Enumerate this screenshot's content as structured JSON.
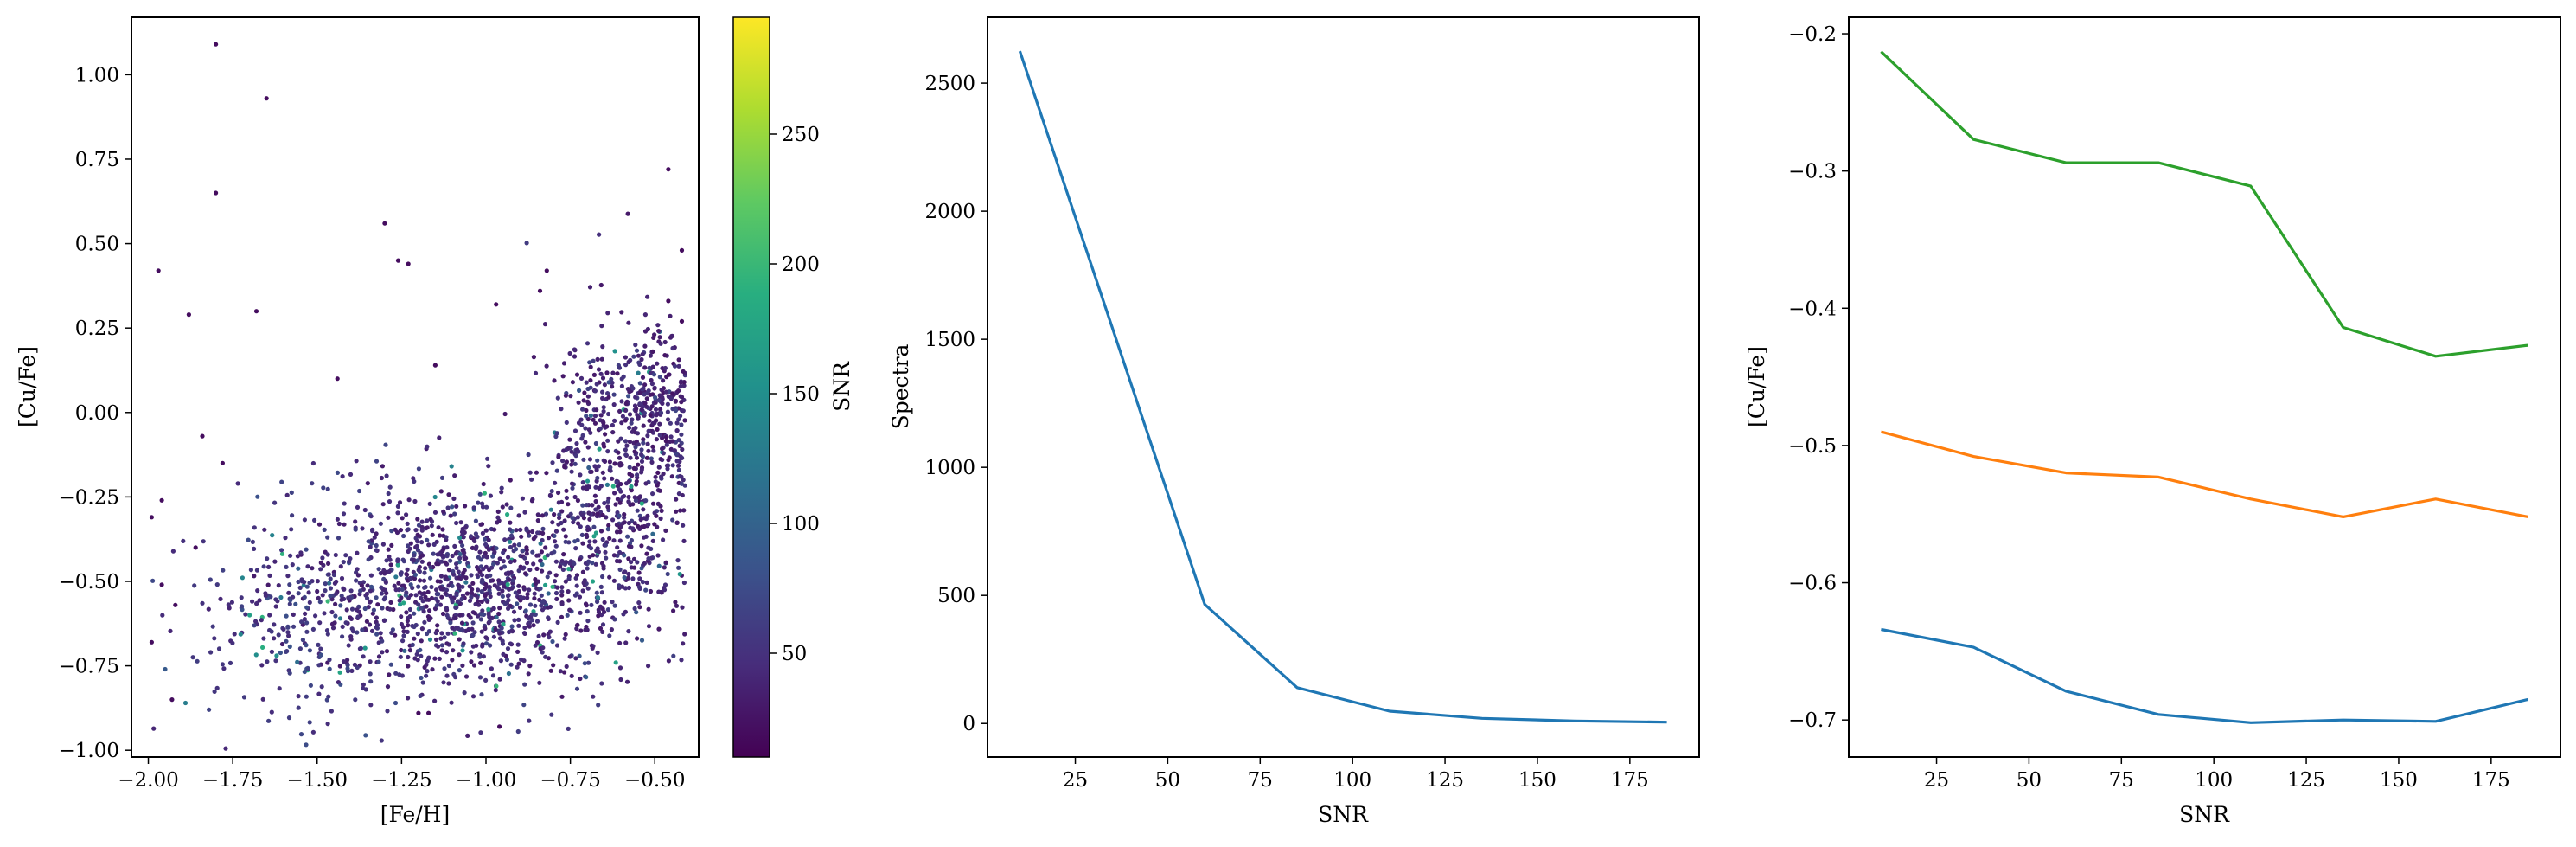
{
  "chart_data": [
    {
      "type": "scatter",
      "xlabel": "[Fe/H]",
      "ylabel": "[Cu/Fe]",
      "xlim": [
        -2.05,
        -0.37
      ],
      "ylim": [
        -1.02,
        1.17
      ],
      "xticks": [
        -2.0,
        -1.75,
        -1.5,
        -1.25,
        -1.0,
        -0.75,
        -0.5
      ],
      "xtick_labels": [
        "−2.00",
        "−1.75",
        "−1.50",
        "−1.25",
        "−1.00",
        "−0.75",
        "−0.50"
      ],
      "yticks": [
        -1.0,
        -0.75,
        -0.5,
        -0.25,
        0.0,
        0.25,
        0.5,
        0.75,
        1.0
      ],
      "ytick_labels": [
        "−1.00",
        "−0.75",
        "−0.50",
        "−0.25",
        "0.00",
        "0.25",
        "0.50",
        "0.75",
        "1.00"
      ],
      "grid": false,
      "colormap": "viridis",
      "colorbar": {
        "label": "SNR",
        "range": [
          10,
          295
        ],
        "ticks": [
          50,
          100,
          150,
          200,
          250
        ],
        "tick_labels": [
          "50",
          "100",
          "150",
          "200",
          "250"
        ]
      },
      "outliers": [
        {
          "x": -1.8,
          "y": 1.09,
          "c": 20
        },
        {
          "x": -1.65,
          "y": 0.93,
          "c": 20
        },
        {
          "x": -1.8,
          "y": 0.65,
          "c": 20
        },
        {
          "x": -1.3,
          "y": 0.56,
          "c": 20
        },
        {
          "x": -1.26,
          "y": 0.45,
          "c": 20
        },
        {
          "x": -1.23,
          "y": 0.44,
          "c": 20
        },
        {
          "x": -1.97,
          "y": 0.42,
          "c": 20
        },
        {
          "x": -1.88,
          "y": 0.29,
          "c": 20
        },
        {
          "x": -1.68,
          "y": 0.3,
          "c": 20
        },
        {
          "x": -0.97,
          "y": 0.32,
          "c": 20
        },
        {
          "x": -0.84,
          "y": 0.36,
          "c": 20
        },
        {
          "x": -0.82,
          "y": 0.42,
          "c": 20
        },
        {
          "x": -0.46,
          "y": 0.72,
          "c": 20
        },
        {
          "x": -0.42,
          "y": 0.48,
          "c": 20
        },
        {
          "x": -0.46,
          "y": 0.33,
          "c": 20
        },
        {
          "x": -0.42,
          "y": 0.27,
          "c": 20
        },
        {
          "x": -1.84,
          "y": -0.07,
          "c": 20
        },
        {
          "x": -1.78,
          "y": -0.15,
          "c": 20
        },
        {
          "x": -1.99,
          "y": -0.31,
          "c": 20
        },
        {
          "x": -1.96,
          "y": -0.26,
          "c": 20
        },
        {
          "x": -1.15,
          "y": 0.14,
          "c": 20
        },
        {
          "x": -1.44,
          "y": 0.1,
          "c": 20
        },
        {
          "x": -0.96,
          "y": -0.93,
          "c": 20
        },
        {
          "x": -1.17,
          "y": -0.89,
          "c": 20
        },
        {
          "x": -1.2,
          "y": -0.89,
          "c": 20
        },
        {
          "x": -1.93,
          "y": -0.85,
          "c": 20
        },
        {
          "x": -1.89,
          "y": -0.86,
          "c": 130
        },
        {
          "x": -1.96,
          "y": -0.51,
          "c": 20
        },
        {
          "x": -1.99,
          "y": -0.68,
          "c": 20
        },
        {
          "x": -1.95,
          "y": -0.76,
          "c": 90
        },
        {
          "x": -1.92,
          "y": -0.57,
          "c": 20
        },
        {
          "x": -1.86,
          "y": -0.4,
          "c": 20
        },
        {
          "x": -1.7,
          "y": -0.6,
          "c": 170
        },
        {
          "x": -1.62,
          "y": -0.72,
          "c": 150
        }
      ],
      "clusters": [
        {
          "cx": -1.05,
          "cy": -0.52,
          "sx": 0.22,
          "sy": 0.15,
          "n": 1150,
          "c_median": 30
        },
        {
          "cx": -0.62,
          "cy": -0.2,
          "sx": 0.11,
          "sy": 0.22,
          "n": 600,
          "c_median": 28
        },
        {
          "cx": -1.55,
          "cy": -0.62,
          "sx": 0.18,
          "sy": 0.16,
          "n": 280,
          "c_median": 40
        },
        {
          "cx": -0.49,
          "cy": 0.02,
          "sx": 0.05,
          "sy": 0.12,
          "n": 200,
          "c_median": 25
        }
      ],
      "sampled_points_note": ""
    },
    {
      "type": "line",
      "xlabel": "SNR",
      "ylabel": "Spectra",
      "xlim": [
        1.25,
        193.75
      ],
      "ylim": [
        -131,
        2757
      ],
      "xticks": [
        25,
        50,
        75,
        100,
        125,
        150,
        175
      ],
      "xtick_labels": [
        "25",
        "50",
        "75",
        "100",
        "125",
        "150",
        "175"
      ],
      "yticks": [
        0,
        500,
        1000,
        1500,
        2000,
        2500
      ],
      "ytick_labels": [
        "0",
        "500",
        "1000",
        "1500",
        "2000",
        "2500"
      ],
      "grid": false,
      "series": [
        {
          "color": "#1f77b4",
          "x": [
            10,
            35,
            60,
            85,
            110,
            135,
            160,
            185
          ],
          "y": [
            2625,
            1545,
            465,
            140,
            48,
            20,
            10,
            5
          ]
        }
      ]
    },
    {
      "type": "line",
      "xlabel": "SNR",
      "ylabel": "[Cu/Fe]",
      "xlim": [
        1.25,
        193.75
      ],
      "ylim": [
        -0.727,
        -0.188
      ],
      "xticks": [
        25,
        50,
        75,
        100,
        125,
        150,
        175
      ],
      "xtick_labels": [
        "25",
        "50",
        "75",
        "100",
        "125",
        "150",
        "175"
      ],
      "yticks": [
        -0.7,
        -0.6,
        -0.5,
        -0.4,
        -0.3,
        -0.2
      ],
      "ytick_labels": [
        "−0.7",
        "−0.6",
        "−0.5",
        "−0.4",
        "−0.3",
        "−0.2"
      ],
      "grid": false,
      "series": [
        {
          "color": "#1f77b4",
          "x": [
            10,
            35,
            60,
            85,
            110,
            135,
            160,
            185
          ],
          "y": [
            -0.634,
            -0.647,
            -0.679,
            -0.696,
            -0.702,
            -0.7,
            -0.701,
            -0.685
          ]
        },
        {
          "color": "#ff7f0e",
          "x": [
            10,
            35,
            60,
            85,
            110,
            135,
            160,
            185
          ],
          "y": [
            -0.49,
            -0.508,
            -0.52,
            -0.523,
            -0.539,
            -0.552,
            -0.539,
            -0.552
          ]
        },
        {
          "color": "#2ca02c",
          "x": [
            10,
            35,
            60,
            85,
            110,
            135,
            160,
            185
          ],
          "y": [
            -0.213,
            -0.277,
            -0.294,
            -0.294,
            -0.311,
            -0.414,
            -0.435,
            -0.427
          ]
        }
      ]
    }
  ]
}
